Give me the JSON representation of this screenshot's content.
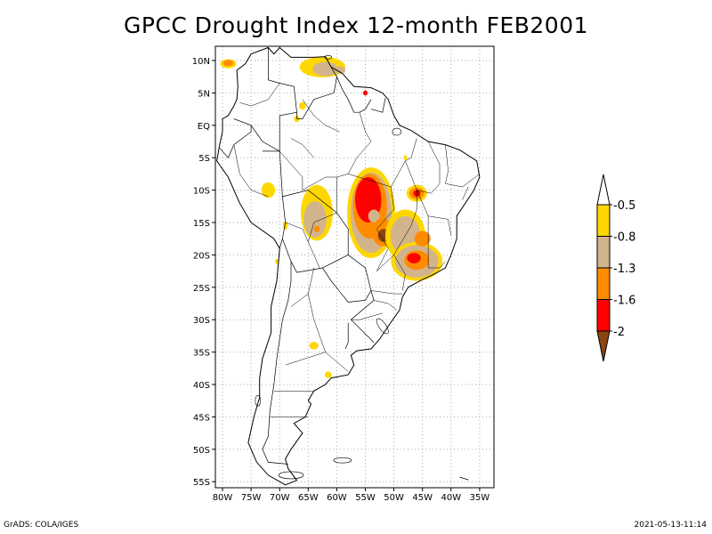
{
  "title": "GPCC Drought Index 12-month FEB2001",
  "footer": {
    "left": "GrADS: COLA/IGES",
    "right": "2021-05-13-11:14"
  },
  "map": {
    "region": "South America",
    "lon_range": [
      -80,
      -35
    ],
    "lat_range": [
      -55,
      10
    ],
    "lon_ticks": [
      "80W",
      "75W",
      "70W",
      "65W",
      "60W",
      "55W",
      "50W",
      "45W",
      "40W",
      "35W"
    ],
    "lon_values": [
      -80,
      -75,
      -70,
      -65,
      -60,
      -55,
      -50,
      -45,
      -40,
      -35
    ],
    "lat_ticks": [
      "10N",
      "5N",
      "EQ",
      "5S",
      "10S",
      "15S",
      "20S",
      "25S",
      "30S",
      "35S",
      "40S",
      "45S",
      "50S",
      "55S"
    ],
    "lat_values": [
      10,
      5,
      0,
      -5,
      -10,
      -15,
      -20,
      -25,
      -30,
      -35,
      -40,
      -45,
      -50,
      -55
    ],
    "gridlines": "dotted"
  },
  "colorbar": {
    "labels": [
      "-0.5",
      "-0.8",
      "-1.3",
      "-1.6",
      "-2"
    ],
    "levels": [
      -0.5,
      -0.8,
      -1.3,
      -1.6,
      -2
    ],
    "colors": [
      "#ffffff",
      "#ffd700",
      "#d2b48c",
      "#ff8c00",
      "#ff0000",
      "#8b4513"
    ],
    "orientation": "vertical",
    "placement": "right"
  },
  "drought_regions": [
    {
      "name": "central-brazil-mato-grosso",
      "lon": -54,
      "lat": -13,
      "rx": 3.5,
      "ry": 6,
      "class": "extreme-core"
    },
    {
      "name": "southeast-brazil-sao-paulo",
      "lon": -46,
      "lat": -21,
      "rx": 3.5,
      "ry": 2.5,
      "class": "severe"
    },
    {
      "name": "bolivia-lowlands",
      "lon": -63,
      "lat": -14,
      "rx": 2.5,
      "ry": 4,
      "class": "moderate"
    },
    {
      "name": "venezuela-coast",
      "lon": -62,
      "lat": 9,
      "rx": 4,
      "ry": 1.5,
      "class": "moderate"
    },
    {
      "name": "bahia-northeast",
      "lon": -46,
      "lat": -10.5,
      "rx": 1.5,
      "ry": 1,
      "class": "severe"
    },
    {
      "name": "peru-east",
      "lon": -72,
      "lat": -10,
      "rx": 1.2,
      "ry": 1.2,
      "class": "mild"
    },
    {
      "name": "argentina-pampas",
      "lon": -64,
      "lat": -34,
      "rx": 0.8,
      "ry": 0.6,
      "class": "mild"
    }
  ]
}
